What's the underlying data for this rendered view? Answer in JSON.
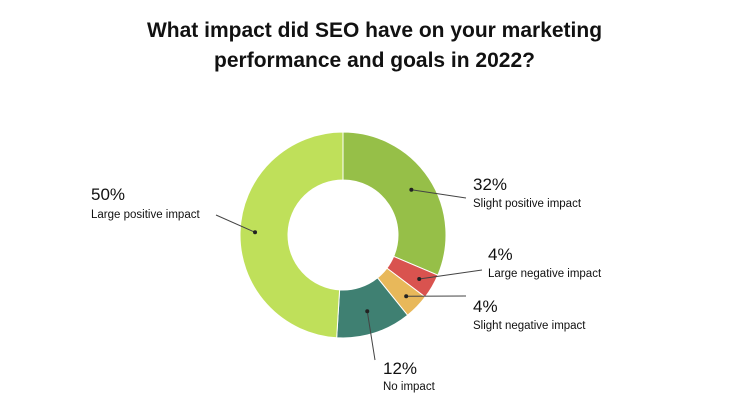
{
  "chart_data": {
    "type": "pie",
    "title_lines": [
      "What impact did SEO have on your marketing",
      "performance and goals in 2022?"
    ],
    "donut": true,
    "slices": [
      {
        "label": "Slight positive impact",
        "value": 32,
        "value_label": "32%",
        "color": "#96bf48"
      },
      {
        "label": "Large negative impact",
        "value": 4,
        "value_label": "4%",
        "color": "#d9534f"
      },
      {
        "label": "Slight negative impact",
        "value": 4,
        "value_label": "4%",
        "color": "#e8b85a"
      },
      {
        "label": "No impact",
        "value": 12,
        "value_label": "12%",
        "color": "#3f8072"
      },
      {
        "label": "Large positive impact",
        "value": 50,
        "value_label": "50%",
        "color": "#bfe05a"
      }
    ],
    "legend": "none"
  }
}
